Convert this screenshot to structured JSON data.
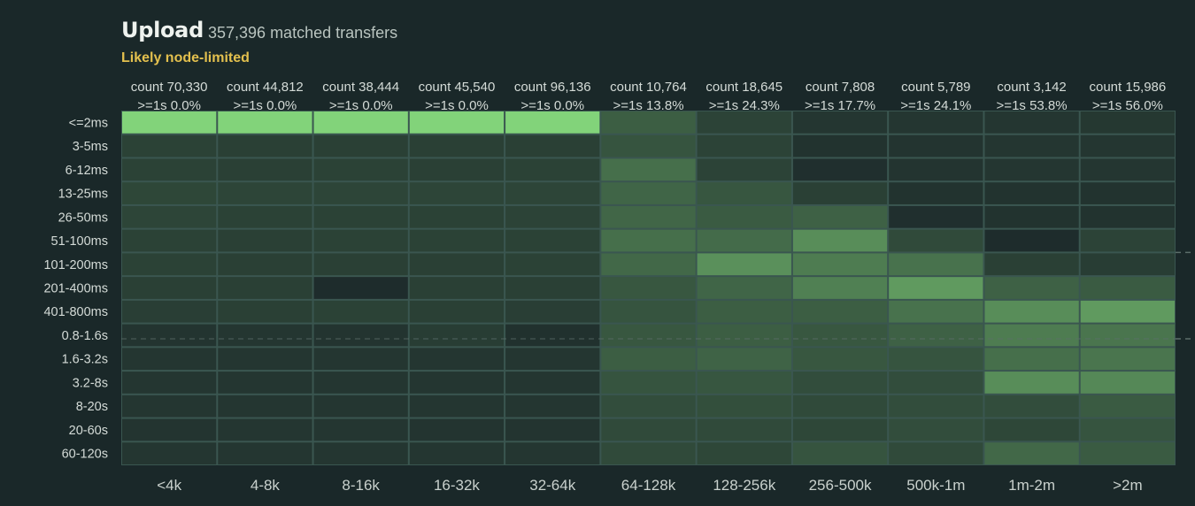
{
  "header": {
    "title": "Upload",
    "subtitle": "357,396 matched transfers",
    "warning": "Likely node-limited"
  },
  "colors": {
    "background": "#1a2829",
    "grid_line": "#3a5650",
    "cell_empty": "#1e2c2c",
    "cell_full": "#82d37a",
    "warning": "#e3c04e",
    "dashed_line": "#5c6e6a"
  },
  "chart_data": {
    "type": "heatmap",
    "title": "Upload",
    "x_axis": {
      "label": "",
      "categories": [
        "<4k",
        "4-8k",
        "8-16k",
        "16-32k",
        "32-64k",
        "64-128k",
        "128-256k",
        "256-500k",
        "500k-1m",
        "1m-2m",
        ">2m"
      ]
    },
    "y_axis": {
      "label": "",
      "categories": [
        "<=2ms",
        "3-5ms",
        "6-12ms",
        "13-25ms",
        "26-50ms",
        "51-100ms",
        "101-200ms",
        "201-400ms",
        "401-800ms",
        "0.8-1.6s",
        "1.6-3.2s",
        "3.2-8s",
        "8-20s",
        "20-60s",
        "60-120s"
      ]
    },
    "column_stats": [
      {
        "count": "count 70,330",
        "slow": ">=1s 0.0%"
      },
      {
        "count": "count 44,812",
        "slow": ">=1s 0.0%"
      },
      {
        "count": "count 38,444",
        "slow": ">=1s 0.0%"
      },
      {
        "count": "count 45,540",
        "slow": ">=1s 0.0%"
      },
      {
        "count": "count 96,136",
        "slow": ">=1s 0.0%"
      },
      {
        "count": "count 10,764",
        "slow": ">=1s 13.8%"
      },
      {
        "count": "count 18,645",
        "slow": ">=1s 24.3%"
      },
      {
        "count": "count 7,808",
        "slow": ">=1s 17.7%"
      },
      {
        "count": "count 5,789",
        "slow": ">=1s 24.1%"
      },
      {
        "count": "count 3,142",
        "slow": ">=1s 53.8%"
      },
      {
        "count": "count 15,986",
        "slow": ">=1s 56.0%"
      }
    ],
    "intensity_scale": [
      0,
      1
    ],
    "intensity": [
      [
        1.0,
        1.0,
        1.0,
        1.0,
        1.0,
        0.3,
        0.14,
        0.06,
        0.06,
        0.06,
        0.07
      ],
      [
        0.13,
        0.12,
        0.12,
        0.12,
        0.12,
        0.24,
        0.14,
        0.04,
        0.05,
        0.06,
        0.06
      ],
      [
        0.13,
        0.12,
        0.13,
        0.12,
        0.13,
        0.4,
        0.14,
        0.02,
        0.05,
        0.06,
        0.06
      ],
      [
        0.16,
        0.15,
        0.15,
        0.15,
        0.15,
        0.34,
        0.25,
        0.12,
        0.04,
        0.04,
        0.04
      ],
      [
        0.15,
        0.13,
        0.13,
        0.13,
        0.14,
        0.35,
        0.28,
        0.32,
        0.02,
        0.04,
        0.04
      ],
      [
        0.13,
        0.12,
        0.13,
        0.13,
        0.13,
        0.4,
        0.38,
        0.58,
        0.18,
        0.0,
        0.14
      ],
      [
        0.13,
        0.12,
        0.12,
        0.12,
        0.13,
        0.36,
        0.6,
        0.48,
        0.42,
        0.12,
        0.1
      ],
      [
        0.12,
        0.12,
        0.0,
        0.12,
        0.12,
        0.26,
        0.34,
        0.5,
        0.66,
        0.32,
        0.28
      ],
      [
        0.11,
        0.12,
        0.13,
        0.12,
        0.11,
        0.24,
        0.3,
        0.3,
        0.42,
        0.58,
        0.66
      ],
      [
        0.05,
        0.06,
        0.05,
        0.1,
        0.03,
        0.26,
        0.3,
        0.26,
        0.32,
        0.48,
        0.44
      ],
      [
        0.06,
        0.06,
        0.06,
        0.06,
        0.06,
        0.3,
        0.33,
        0.26,
        0.24,
        0.4,
        0.44
      ],
      [
        0.06,
        0.06,
        0.06,
        0.06,
        0.06,
        0.24,
        0.25,
        0.2,
        0.2,
        0.58,
        0.55
      ],
      [
        0.06,
        0.06,
        0.06,
        0.06,
        0.06,
        0.2,
        0.21,
        0.18,
        0.2,
        0.2,
        0.28
      ],
      [
        0.05,
        0.06,
        0.06,
        0.05,
        0.05,
        0.18,
        0.18,
        0.16,
        0.2,
        0.16,
        0.24
      ],
      [
        0.06,
        0.06,
        0.06,
        0.06,
        0.06,
        0.18,
        0.16,
        0.24,
        0.18,
        0.36,
        0.28
      ]
    ],
    "grid": true,
    "legend": "none"
  }
}
